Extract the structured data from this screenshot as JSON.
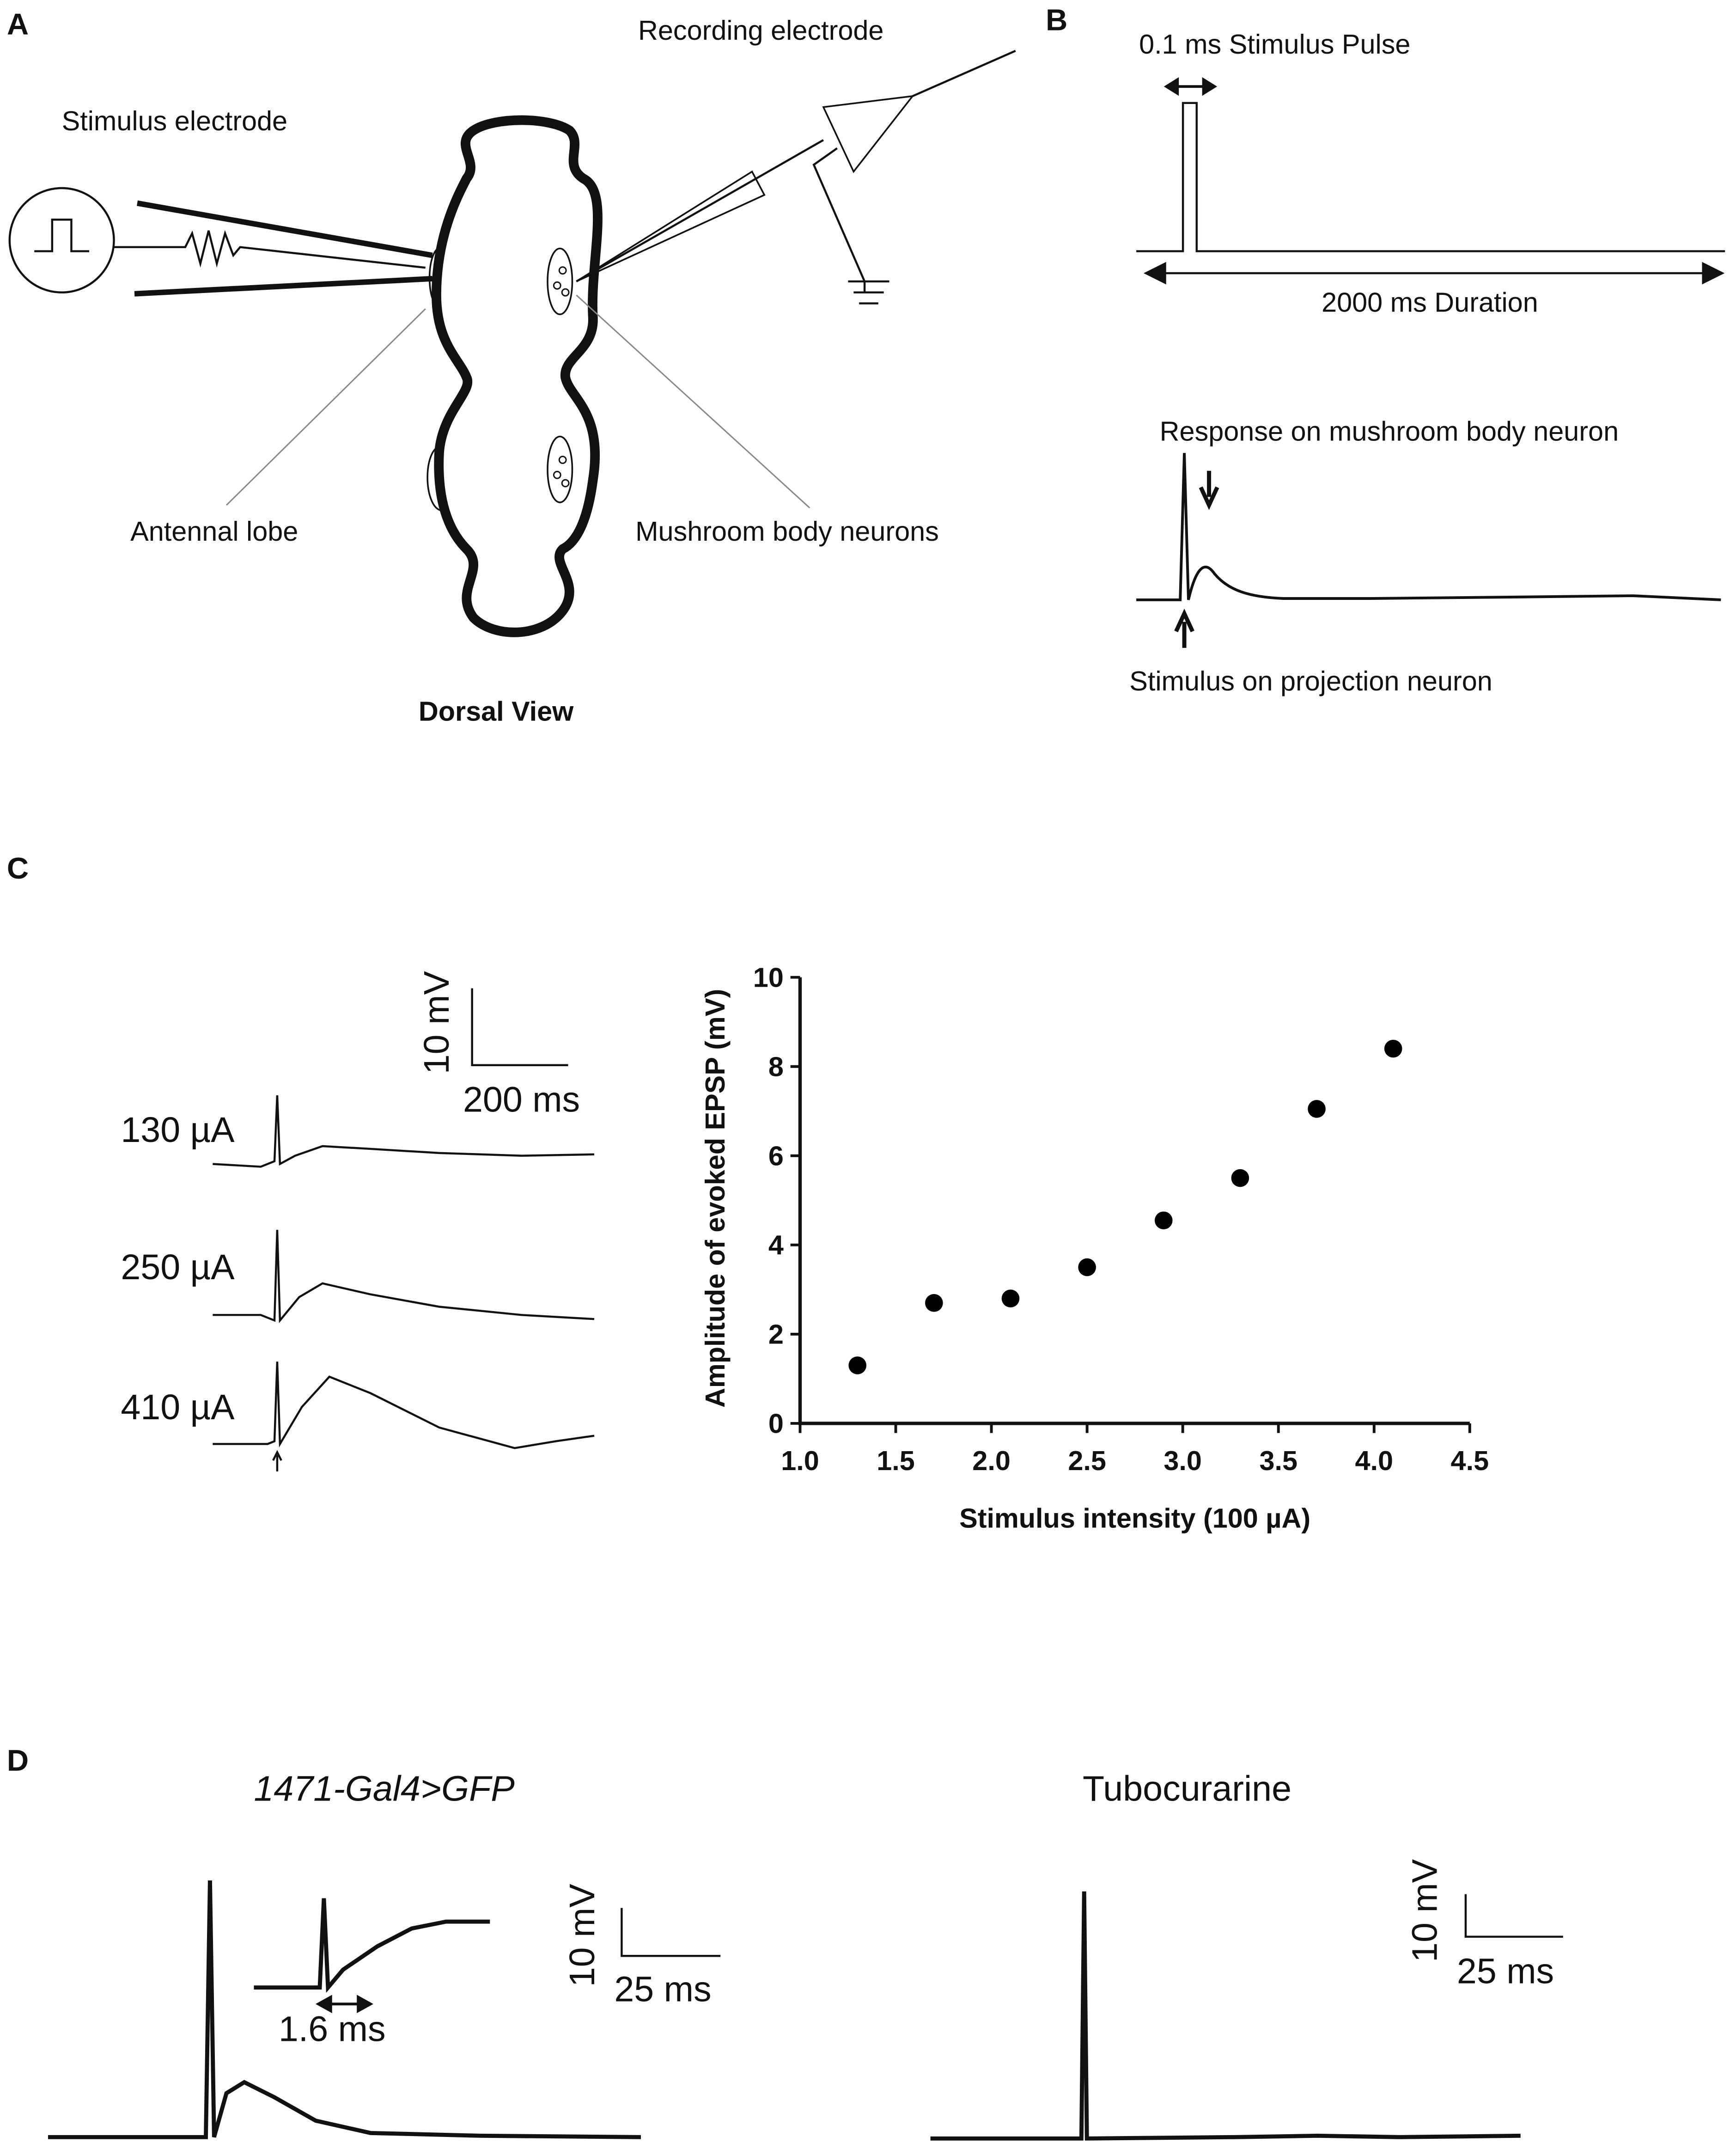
{
  "panels": {
    "A": {
      "label": "A",
      "recording": "Recording electrode",
      "stimulus": "Stimulus electrode",
      "antennal": "Antennal lobe",
      "mushroom": "Mushroom body neurons",
      "view": "Dorsal View"
    },
    "B": {
      "label": "B",
      "pulse": "0.1 ms Stimulus Pulse",
      "duration": "2000 ms Duration",
      "response": "Response on mushroom body neuron",
      "stim": "Stimulus on projection neuron"
    },
    "C": {
      "label": "C",
      "scale_v": "10 mV",
      "scale_t": "200 ms",
      "traces": [
        "130 µA",
        "250 µA",
        "410 µA"
      ]
    },
    "D": {
      "label": "D",
      "left_title": "1471-Gal4>GFP",
      "right_title": "Tubocurarine",
      "left_scale_v": "10 mV",
      "left_scale_t": "25 ms",
      "inset": "1.6 ms",
      "right_scale_v": "10 mV",
      "right_scale_t": "25 ms"
    }
  },
  "chart_data": {
    "type": "scatter",
    "xlabel": "Stimulus intensity (100 µA)",
    "ylabel": "Amplitude of evoked EPSP (mV)",
    "x": [
      1.3,
      1.7,
      2.1,
      2.5,
      2.9,
      3.3,
      3.7,
      4.1
    ],
    "values": [
      1.3,
      2.7,
      2.8,
      3.5,
      4.55,
      5.5,
      7.05,
      8.4
    ],
    "color": "#000000",
    "xlim": [
      1,
      4.5
    ],
    "xticks": [
      {
        "value": 1,
        "label": "1.0"
      },
      1.5,
      {
        "value": 2,
        "label": "2.0"
      },
      2.5,
      {
        "value": 3,
        "label": "3.0"
      },
      3.5,
      {
        "value": 4,
        "label": "4.0"
      },
      4.5
    ],
    "ylim": [
      0,
      10
    ],
    "yticks": [
      0,
      2,
      4,
      6,
      8,
      10
    ],
    "grid": false
  }
}
